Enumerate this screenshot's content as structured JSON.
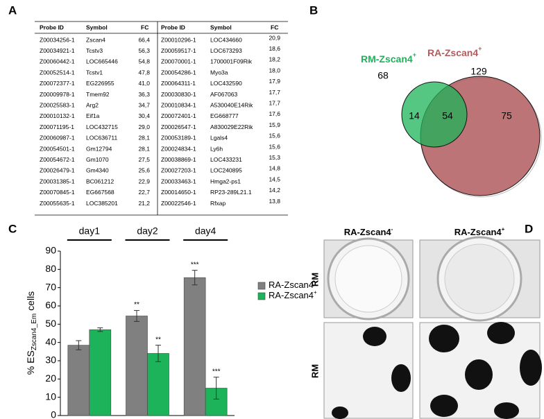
{
  "panel_labels": [
    "A",
    "B",
    "C",
    "D"
  ],
  "table": {
    "header": [
      "Probe ID",
      "Symbol",
      "FC",
      "Probe ID",
      "Symbol",
      "FC"
    ],
    "rows": [
      [
        "Z00034256-1",
        "Zscan4",
        "66,4",
        "Z00010296-1",
        "LOC434660",
        "20,9"
      ],
      [
        "Z00034921-1",
        "Tcstv3",
        "56,3",
        "Z00059517-1",
        "LOC673293",
        "18,6"
      ],
      [
        "Z00060442-1",
        "LOC665446",
        "54,8",
        "Z00070001-1",
        "1700001F09Rik",
        "18,2"
      ],
      [
        "Z00052514-1",
        "Tcstv1",
        "47,8",
        "Z00054286-1",
        "Myo3a",
        "18,0"
      ],
      [
        "Z00072377-1",
        "EG226955",
        "41,0",
        "Z00064311-1",
        "LOC432590",
        "17,9"
      ],
      [
        "Z00009978-1",
        "Tmem92",
        "36,3",
        "Z00030830-1",
        "AF067063",
        "17,7"
      ],
      [
        "Z00025583-1",
        "Arg2",
        "34,7",
        "Z00010834-1",
        "A530040E14Rik",
        "17,7"
      ],
      [
        "Z00010132-1",
        "Eif1a",
        "30,4",
        "Z00072401-1",
        "EG668777",
        "17,6"
      ],
      [
        "Z00071195-1",
        "LOC432715",
        "29,0",
        "Z00026547-1",
        "A830029E22Rik",
        "15,9"
      ],
      [
        "Z00060987-1",
        "LOC636711",
        "28,1",
        "Z00053189-1",
        "Lgals4",
        "15,6"
      ],
      [
        "Z00054501-1",
        "Gm12794",
        "28,1",
        "Z00024834-1",
        "Ly6h",
        "15,6"
      ],
      [
        "Z00054672-1",
        "Gm1070",
        "27,5",
        "Z00038869-1",
        "LOC433231",
        "15,3"
      ],
      [
        "Z00026479-1",
        "Gm4340",
        "25,6",
        "Z00027203-1",
        "LOC240895",
        "14,8"
      ],
      [
        "Z00031385-1",
        "BC061212",
        "22,9",
        "Z00033463-1",
        "Hmga2-ps1",
        "14,5"
      ],
      [
        "Z00070845-1",
        "EG667568",
        "22,7",
        "Z00014650-1",
        "RP23-289L21.1",
        "14,2"
      ],
      [
        "Z00055635-1",
        "LOC385201",
        "21,2",
        "Z00022546-1",
        "Rfxap",
        "13,8"
      ]
    ]
  },
  "venn": {
    "sets": [
      {
        "name": "RM-Zscan4",
        "sup": "+",
        "total": "68"
      },
      {
        "name": "RA-Zscan4",
        "sup": "+",
        "total": "129"
      }
    ],
    "regions": [
      "14",
      "54",
      "75"
    ]
  },
  "chart_data": {
    "type": "bar",
    "categories": [
      "day1",
      "day2",
      "day4"
    ],
    "ylabel": {
      "main": "% ES",
      "sub": "Zscan4_Em",
      "tail": "cells"
    },
    "ylim": [
      0,
      90
    ],
    "yticks": [
      0,
      10,
      20,
      30,
      40,
      50,
      60,
      70,
      80,
      90
    ],
    "series": [
      {
        "name": "RA-Zscan4",
        "name_sup": "-",
        "color": "#808080",
        "values": [
          38.5,
          54.5,
          75.5
        ],
        "errors": [
          2.5,
          3,
          4
        ],
        "annotations": [
          null,
          "**",
          "***"
        ]
      },
      {
        "name": "RA-Zscan4",
        "name_sup": "+",
        "color": "#1db35a",
        "values": [
          47,
          34,
          15
        ],
        "errors": [
          1,
          4.5,
          6
        ],
        "annotations": [
          null,
          "**",
          "***"
        ]
      }
    ]
  },
  "images": {
    "columns": [
      {
        "name": "RA-Zscan4",
        "sup": "-"
      },
      {
        "name": "RA-Zscan4",
        "sup": "+"
      }
    ],
    "rows": [
      "RM",
      "RM"
    ]
  }
}
